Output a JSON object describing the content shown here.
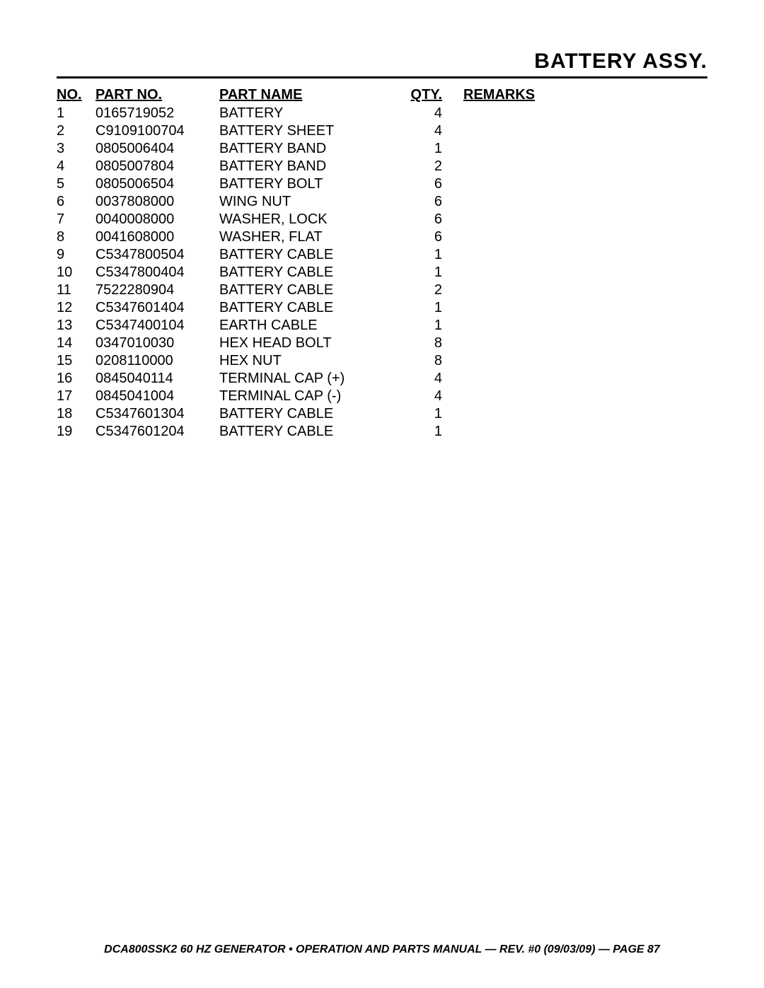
{
  "title": "BATTERY ASSY.",
  "columns": {
    "no": "NO.",
    "partno": "PART NO.",
    "partname": "PART NAME",
    "qty": "QTY.",
    "remarks": "REMARKS"
  },
  "rows": [
    {
      "no": "1",
      "partno": "0165719052",
      "partname": "BATTERY",
      "qty": "4",
      "remarks": ""
    },
    {
      "no": "2",
      "partno": "C9109100704",
      "partname": "BATTERY SHEET",
      "qty": "4",
      "remarks": ""
    },
    {
      "no": "3",
      "partno": "0805006404",
      "partname": "BATTERY BAND",
      "qty": "1",
      "remarks": ""
    },
    {
      "no": "4",
      "partno": "0805007804",
      "partname": "BATTERY BAND",
      "qty": "2",
      "remarks": ""
    },
    {
      "no": "5",
      "partno": "0805006504",
      "partname": "BATTERY BOLT",
      "qty": "6",
      "remarks": ""
    },
    {
      "no": "6",
      "partno": "0037808000",
      "partname": "WING NUT",
      "qty": "6",
      "remarks": ""
    },
    {
      "no": "7",
      "partno": "0040008000",
      "partname": "WASHER, LOCK",
      "qty": "6",
      "remarks": ""
    },
    {
      "no": "8",
      "partno": "0041608000",
      "partname": "WASHER, FLAT",
      "qty": "6",
      "remarks": ""
    },
    {
      "no": "9",
      "partno": "C5347800504",
      "partname": "BATTERY CABLE",
      "qty": "1",
      "remarks": ""
    },
    {
      "no": "10",
      "partno": "C5347800404",
      "partname": "BATTERY CABLE",
      "qty": "1",
      "remarks": ""
    },
    {
      "no": "11",
      "partno": "7522280904",
      "partname": "BATTERY CABLE",
      "qty": "2",
      "remarks": ""
    },
    {
      "no": "12",
      "partno": "C5347601404",
      "partname": "BATTERY CABLE",
      "qty": "1",
      "remarks": ""
    },
    {
      "no": "13",
      "partno": "C5347400104",
      "partname": "EARTH CABLE",
      "qty": "1",
      "remarks": ""
    },
    {
      "no": "14",
      "partno": "0347010030",
      "partname": "HEX HEAD BOLT",
      "qty": "8",
      "remarks": ""
    },
    {
      "no": "15",
      "partno": "0208110000",
      "partname": "HEX NUT",
      "qty": "8",
      "remarks": ""
    },
    {
      "no": "16",
      "partno": "0845040114",
      "partname": "TERMINAL CAP (+)",
      "qty": "4",
      "remarks": ""
    },
    {
      "no": "17",
      "partno": "0845041004",
      "partname": "TERMINAL CAP (-)",
      "qty": "4",
      "remarks": ""
    },
    {
      "no": "18",
      "partno": "C5347601304",
      "partname": "BATTERY CABLE",
      "qty": "1",
      "remarks": ""
    },
    {
      "no": "19",
      "partno": "C5347601204",
      "partname": "BATTERY CABLE",
      "qty": "1",
      "remarks": ""
    }
  ],
  "footer": "DCA800SSK2 60 HZ GENERATOR • OPERATION AND PARTS MANUAL — REV. #0 (09/03/09) — PAGE 87"
}
